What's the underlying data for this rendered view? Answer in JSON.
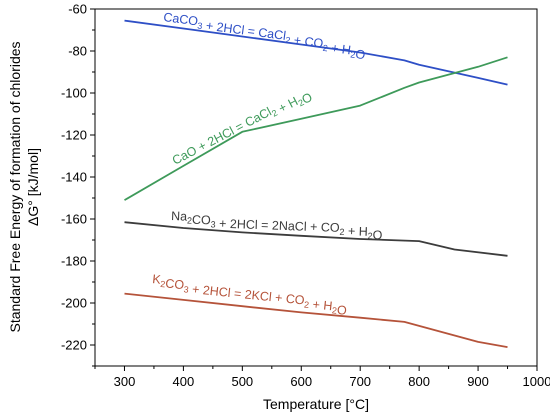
{
  "chart_data": {
    "type": "line",
    "title": "",
    "xlabel": "Temperature [°C]",
    "ylabel_line1": "Standard Free Energy of formation of chlorides",
    "ylabel_line2": "ΔG° [kJ/mol]",
    "xlim": [
      250,
      1000
    ],
    "ylim": [
      -230,
      -60
    ],
    "xticks": [
      300,
      400,
      500,
      600,
      700,
      800,
      900,
      1000
    ],
    "yticks": [
      -60,
      -80,
      -100,
      -120,
      -140,
      -160,
      -180,
      -200,
      -220
    ],
    "grid": false,
    "series": [
      {
        "name": "CaCO3 + 2HCl = CaCl2 + CO2 + H2O",
        "label_parts": [
          {
            "t": "CaCO",
            "s": false
          },
          {
            "t": "3",
            "s": true
          },
          {
            "t": " + 2HCl = CaCl",
            "s": false
          },
          {
            "t": "2",
            "s": true
          },
          {
            "t": " + CO",
            "s": false
          },
          {
            "t": "2",
            "s": true
          },
          {
            "t": " + H",
            "s": false
          },
          {
            "t": "2",
            "s": true
          },
          {
            "t": "O",
            "s": false
          }
        ],
        "color": "#2e4fc6",
        "x": [
          300,
          400,
          500,
          600,
          700,
          775,
          800,
          900,
          950
        ],
        "y": [
          -65.5,
          -69.3,
          -73.1,
          -76.9,
          -80.7,
          -84.5,
          -86.5,
          -92.8,
          -96
        ]
      },
      {
        "name": "CaO + 2HCl = CaCl2 + H2O",
        "label_parts": [
          {
            "t": "CaO + 2HCl = CaCl",
            "s": false
          },
          {
            "t": "2",
            "s": true
          },
          {
            "t": " + H",
            "s": false
          },
          {
            "t": "2",
            "s": true
          },
          {
            "t": "O",
            "s": false
          }
        ],
        "color": "#3e9a5a",
        "x": [
          300,
          400,
          500,
          600,
          700,
          775,
          800,
          900,
          950
        ],
        "y": [
          -151,
          -134.7,
          -118.5,
          -112.3,
          -106,
          -97.5,
          -95,
          -87.5,
          -83
        ]
      },
      {
        "name": "Na2CO3 + 2HCl = 2NaCl + CO2 + H2O",
        "label_parts": [
          {
            "t": "Na",
            "s": false
          },
          {
            "t": "2",
            "s": true
          },
          {
            "t": "CO",
            "s": false
          },
          {
            "t": "3",
            "s": true
          },
          {
            "t": " + 2HCl = 2NaCl + CO",
            "s": false
          },
          {
            "t": "2",
            "s": true
          },
          {
            "t": " + H",
            "s": false
          },
          {
            "t": "2",
            "s": true
          },
          {
            "t": "O",
            "s": false
          }
        ],
        "color": "#3c3c3c",
        "x": [
          300,
          400,
          500,
          600,
          700,
          800,
          860,
          950
        ],
        "y": [
          -161.5,
          -164.3,
          -166.4,
          -168,
          -169.5,
          -170.5,
          -174.5,
          -177.5
        ]
      },
      {
        "name": "K2CO3 + 2HCl = 2KCl + CO2 + H2O",
        "label_parts": [
          {
            "t": "K",
            "s": false
          },
          {
            "t": "2",
            "s": true
          },
          {
            "t": "CO",
            "s": false
          },
          {
            "t": "3",
            "s": true
          },
          {
            "t": " + 2HCl = 2KCl + CO",
            "s": false
          },
          {
            "t": "2",
            "s": true
          },
          {
            "t": " + H",
            "s": false
          },
          {
            "t": "2",
            "s": true
          },
          {
            "t": "O",
            "s": false
          }
        ],
        "color": "#b5533a",
        "x": [
          300,
          400,
          500,
          600,
          700,
          775,
          900,
          950
        ],
        "y": [
          -195.5,
          -198.5,
          -201.5,
          -204.5,
          -207,
          -209,
          -218.5,
          -221
        ]
      }
    ]
  }
}
